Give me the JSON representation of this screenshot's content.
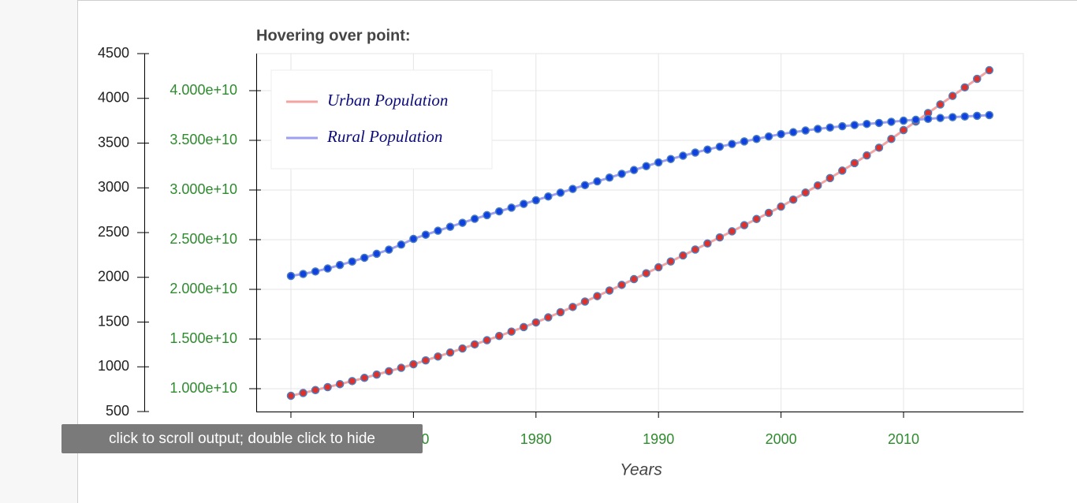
{
  "chart_data": {
    "type": "line",
    "title": "Hovering over point:",
    "x_label": "Years",
    "x": [
      1960,
      1961,
      1962,
      1963,
      1964,
      1965,
      1966,
      1967,
      1968,
      1969,
      1970,
      1971,
      1972,
      1973,
      1974,
      1975,
      1976,
      1977,
      1978,
      1979,
      1980,
      1981,
      1982,
      1983,
      1984,
      1985,
      1986,
      1987,
      1988,
      1989,
      1990,
      1991,
      1992,
      1993,
      1994,
      1995,
      1996,
      1997,
      1998,
      1999,
      2000,
      2001,
      2002,
      2003,
      2004,
      2005,
      2006,
      2007,
      2008,
      2009,
      2010,
      2011,
      2012,
      2013,
      2014,
      2015,
      2016,
      2017
    ],
    "series": [
      {
        "name": "Urban Population",
        "color": "#f4a3a3",
        "marker_fill": "#e0302a",
        "marker_line": "#4a7fc0",
        "axis": "y2",
        "values": [
          9290000000.0,
          9570000000.0,
          9860000000.0,
          10160000000.0,
          10460000000.0,
          10770000000.0,
          11090000000.0,
          11420000000.0,
          11760000000.0,
          12100000000.0,
          12460000000.0,
          12850000000.0,
          13240000000.0,
          13640000000.0,
          14050000000.0,
          14460000000.0,
          14880000000.0,
          15310000000.0,
          15750000000.0,
          16200000000.0,
          16670000000.0,
          17180000000.0,
          17700000000.0,
          18230000000.0,
          18770000000.0,
          19320000000.0,
          19880000000.0,
          20450000000.0,
          21030000000.0,
          21620000000.0,
          22220000000.0,
          22810000000.0,
          23410000000.0,
          24010000000.0,
          24620000000.0,
          25230000000.0,
          25840000000.0,
          26460000000.0,
          27080000000.0,
          27700000000.0,
          28330000000.0,
          29030000000.0,
          29740000000.0,
          30460000000.0,
          31200000000.0,
          31950000000.0,
          32710000000.0,
          33480000000.0,
          34260000000.0,
          35140000000.0,
          36030000000.0,
          36890000000.0,
          37750000000.0,
          38610000000.0,
          39470000000.0,
          40330000000.0,
          41190000000.0,
          42060000000.0
        ]
      },
      {
        "name": "Rural Population",
        "color": "#9d9ff0",
        "marker_fill": "#1040e0",
        "marker_line": "#4a7fc0",
        "axis": "y2",
        "values": [
          21350000000.0,
          21550000000.0,
          21800000000.0,
          22100000000.0,
          22450000000.0,
          22800000000.0,
          23180000000.0,
          23580000000.0,
          24000000000.0,
          24500000000.0,
          25080000000.0,
          25500000000.0,
          25900000000.0,
          26300000000.0,
          26700000000.0,
          27100000000.0,
          27470000000.0,
          27850000000.0,
          28220000000.0,
          28600000000.0,
          28970000000.0,
          29350000000.0,
          29730000000.0,
          30110000000.0,
          30490000000.0,
          30870000000.0,
          31250000000.0,
          31630000000.0,
          32010000000.0,
          32400000000.0,
          32780000000.0,
          33120000000.0,
          33450000000.0,
          33770000000.0,
          34070000000.0,
          34360000000.0,
          34630000000.0,
          34890000000.0,
          35140000000.0,
          35390000000.0,
          35630000000.0,
          35820000000.0,
          35990000000.0,
          36150000000.0,
          36290000000.0,
          36420000000.0,
          36540000000.0,
          36650000000.0,
          36750000000.0,
          36870000000.0,
          36980000000.0,
          37070000000.0,
          37160000000.0,
          37250000000.0,
          37330000000.0,
          37400000000.0,
          37470000000.0,
          37540000000.0
        ]
      }
    ],
    "xlim": [
      1957.17,
      2019.78
    ],
    "xticks": [
      1960,
      1970,
      1980,
      1990,
      2000,
      2010
    ],
    "ylim": [
      500,
      4500
    ],
    "yticks": [
      500,
      1000,
      1500,
      2000,
      2500,
      3000,
      3500,
      4000,
      4500
    ],
    "y2lim": [
      7700000000.0,
      43730000000.0
    ],
    "y2ticks": [
      {
        "value": 10000000000.0,
        "label": "1.000e+10"
      },
      {
        "value": 15000000000.0,
        "label": "1.500e+10"
      },
      {
        "value": 20000000000.0,
        "label": "2.000e+10"
      },
      {
        "value": 25000000000.0,
        "label": "2.500e+10"
      },
      {
        "value": 30000000000.0,
        "label": "3.000e+10"
      },
      {
        "value": 35000000000.0,
        "label": "3.500e+10"
      },
      {
        "value": 40000000000.0,
        "label": "4.000e+10"
      }
    ],
    "grid": true,
    "legend": "top-left",
    "tick_color": "#2e8b2e"
  },
  "tooltip": "click to scroll output; double click to hide"
}
